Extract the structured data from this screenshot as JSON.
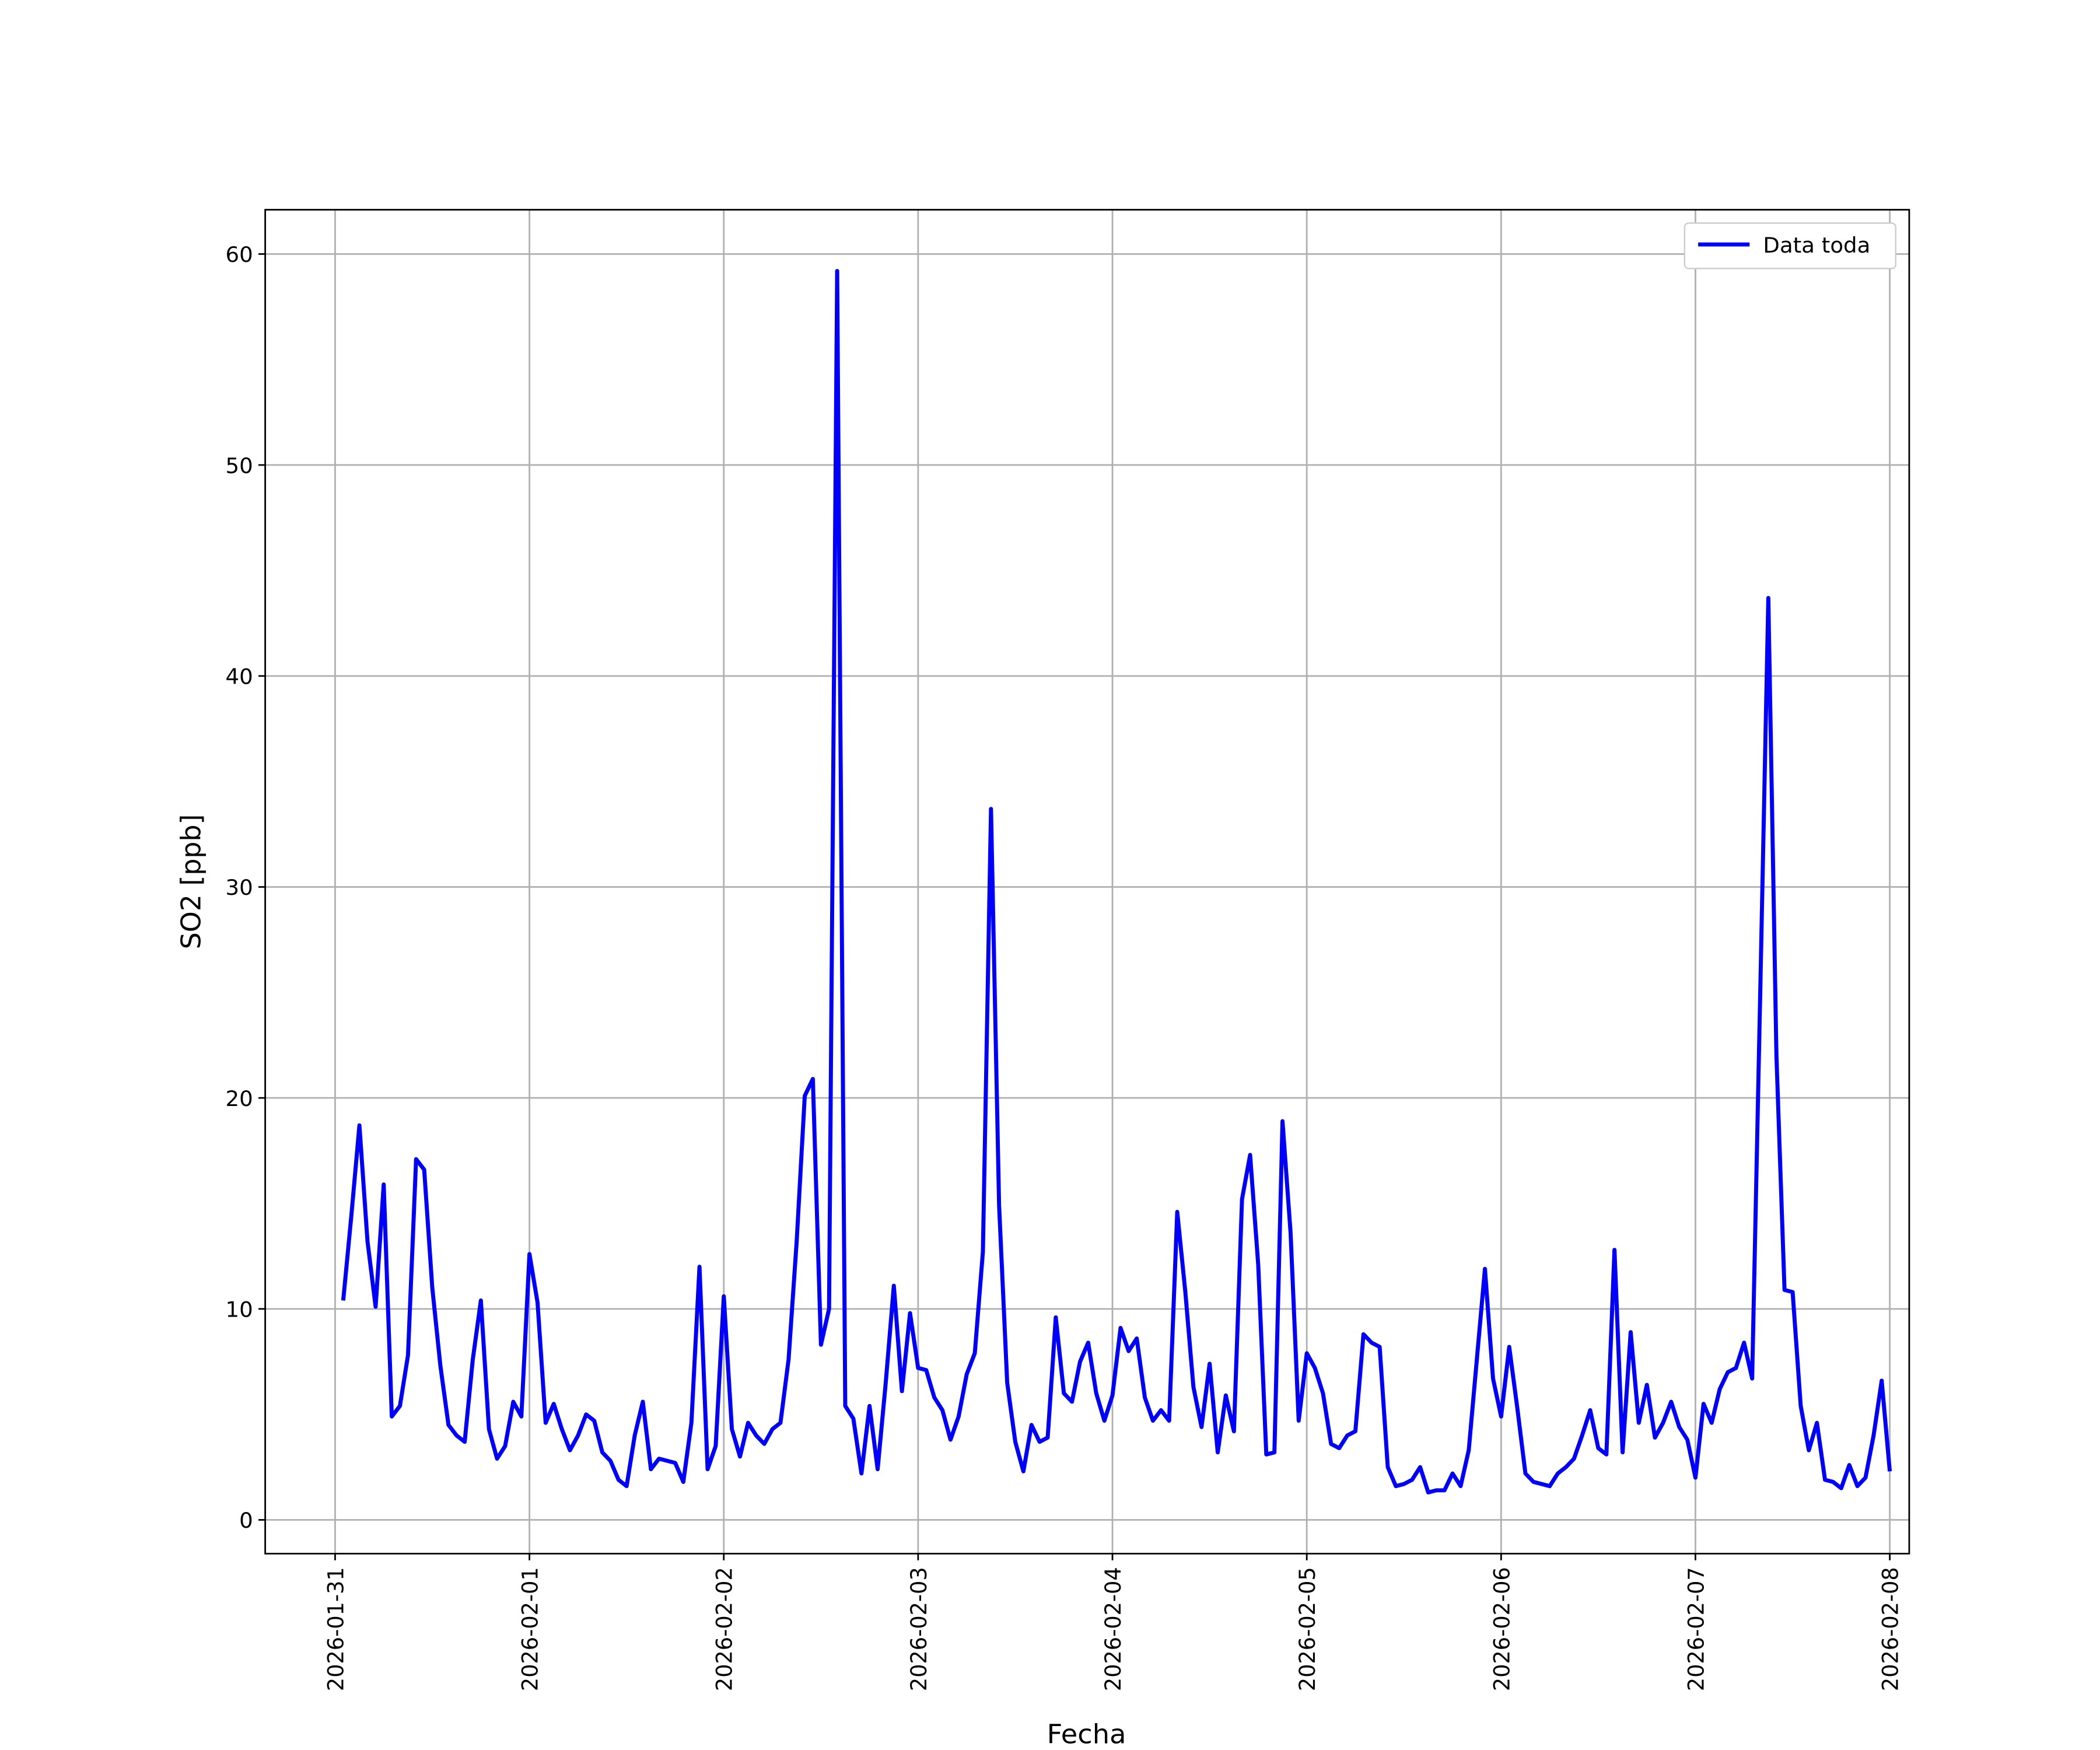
{
  "chart_data": {
    "type": "line",
    "xlabel": "Fecha",
    "ylabel": "SO2 [ppb]",
    "xlim": [
      "2026-01-30T15:22",
      "2026-02-08T02:24"
    ],
    "ylim": [
      -1.6,
      62.1
    ],
    "xticks": [
      "2026-01-31",
      "2026-02-01",
      "2026-02-02",
      "2026-02-03",
      "2026-02-04",
      "2026-02-05",
      "2026-02-06",
      "2026-02-07",
      "2026-02-08"
    ],
    "yticks": [
      0,
      10,
      20,
      30,
      40,
      50,
      60
    ],
    "grid": true,
    "legend": "upper right",
    "x": [
      "2026-01-31T01:00",
      "2026-01-31T02:00",
      "2026-01-31T03:00",
      "2026-01-31T04:00",
      "2026-01-31T05:00",
      "2026-01-31T06:00",
      "2026-01-31T07:00",
      "2026-01-31T08:00",
      "2026-01-31T09:00",
      "2026-01-31T10:00",
      "2026-01-31T11:00",
      "2026-01-31T12:00",
      "2026-01-31T13:00",
      "2026-01-31T14:00",
      "2026-01-31T15:00",
      "2026-01-31T16:00",
      "2026-01-31T17:00",
      "2026-01-31T18:00",
      "2026-01-31T19:00",
      "2026-01-31T20:00",
      "2026-01-31T21:00",
      "2026-01-31T22:00",
      "2026-01-31T23:00",
      "2026-02-01T00:00",
      "2026-02-01T01:00",
      "2026-02-01T02:00",
      "2026-02-01T03:00",
      "2026-02-01T04:00",
      "2026-02-01T05:00",
      "2026-02-01T06:00",
      "2026-02-01T07:00",
      "2026-02-01T08:00",
      "2026-02-01T09:00",
      "2026-02-01T10:00",
      "2026-02-01T11:00",
      "2026-02-01T12:00",
      "2026-02-01T13:00",
      "2026-02-01T14:00",
      "2026-02-01T15:00",
      "2026-02-01T16:00",
      "2026-02-01T17:00",
      "2026-02-01T18:00",
      "2026-02-01T19:00",
      "2026-02-01T20:00",
      "2026-02-01T21:00",
      "2026-02-01T22:00",
      "2026-02-01T23:00",
      "2026-02-02T00:00",
      "2026-02-02T01:00",
      "2026-02-02T02:00",
      "2026-02-02T03:00",
      "2026-02-02T04:00",
      "2026-02-02T05:00",
      "2026-02-02T06:00",
      "2026-02-02T07:00",
      "2026-02-02T08:00",
      "2026-02-02T09:00",
      "2026-02-02T10:00",
      "2026-02-02T11:00",
      "2026-02-02T12:00",
      "2026-02-02T13:00",
      "2026-02-02T14:00",
      "2026-02-02T15:00",
      "2026-02-02T16:00",
      "2026-02-02T17:00",
      "2026-02-02T18:00",
      "2026-02-02T19:00",
      "2026-02-02T20:00",
      "2026-02-02T21:00",
      "2026-02-02T22:00",
      "2026-02-02T23:00",
      "2026-02-03T00:00",
      "2026-02-03T01:00",
      "2026-02-03T02:00",
      "2026-02-03T03:00",
      "2026-02-03T04:00",
      "2026-02-03T05:00",
      "2026-02-03T06:00",
      "2026-02-03T07:00",
      "2026-02-03T08:00",
      "2026-02-03T09:00",
      "2026-02-03T10:00",
      "2026-02-03T11:00",
      "2026-02-03T12:00",
      "2026-02-03T13:00",
      "2026-02-03T14:00",
      "2026-02-03T15:00",
      "2026-02-03T16:00",
      "2026-02-03T17:00",
      "2026-02-03T18:00",
      "2026-02-03T19:00",
      "2026-02-03T20:00",
      "2026-02-03T21:00",
      "2026-02-03T22:00",
      "2026-02-03T23:00",
      "2026-02-04T00:00",
      "2026-02-04T01:00",
      "2026-02-04T02:00",
      "2026-02-04T03:00",
      "2026-02-04T04:00",
      "2026-02-04T05:00",
      "2026-02-04T06:00",
      "2026-02-04T07:00",
      "2026-02-04T08:00",
      "2026-02-04T09:00",
      "2026-02-04T10:00",
      "2026-02-04T11:00",
      "2026-02-04T12:00",
      "2026-02-04T13:00",
      "2026-02-04T14:00",
      "2026-02-04T15:00",
      "2026-02-04T16:00",
      "2026-02-04T17:00",
      "2026-02-04T18:00",
      "2026-02-04T19:00",
      "2026-02-04T20:00",
      "2026-02-04T21:00",
      "2026-02-04T22:00",
      "2026-02-04T23:00",
      "2026-02-05T00:00",
      "2026-02-05T01:00",
      "2026-02-05T02:00",
      "2026-02-05T03:00",
      "2026-02-05T04:00",
      "2026-02-05T05:00",
      "2026-02-05T06:00",
      "2026-02-05T07:00",
      "2026-02-05T08:00",
      "2026-02-05T09:00",
      "2026-02-05T10:00",
      "2026-02-05T11:00",
      "2026-02-05T12:00",
      "2026-02-05T13:00",
      "2026-02-05T14:00",
      "2026-02-05T15:00",
      "2026-02-05T16:00",
      "2026-02-05T17:00",
      "2026-02-05T18:00",
      "2026-02-05T19:00",
      "2026-02-05T20:00",
      "2026-02-05T21:00",
      "2026-02-05T22:00",
      "2026-02-05T23:00",
      "2026-02-06T00:00",
      "2026-02-06T01:00",
      "2026-02-06T02:00",
      "2026-02-06T03:00",
      "2026-02-06T04:00",
      "2026-02-06T05:00",
      "2026-02-06T06:00",
      "2026-02-06T07:00",
      "2026-02-06T08:00",
      "2026-02-06T09:00",
      "2026-02-06T10:00",
      "2026-02-06T11:00",
      "2026-02-06T12:00",
      "2026-02-06T13:00",
      "2026-02-06T14:00",
      "2026-02-06T15:00",
      "2026-02-06T16:00",
      "2026-02-06T17:00",
      "2026-02-06T18:00",
      "2026-02-06T19:00",
      "2026-02-06T20:00",
      "2026-02-06T21:00",
      "2026-02-06T22:00",
      "2026-02-06T23:00",
      "2026-02-07T00:00",
      "2026-02-07T01:00",
      "2026-02-07T02:00",
      "2026-02-07T03:00",
      "2026-02-07T04:00",
      "2026-02-07T05:00",
      "2026-02-07T06:00",
      "2026-02-07T07:00",
      "2026-02-07T08:00",
      "2026-02-07T09:00",
      "2026-02-07T10:00",
      "2026-02-07T11:00",
      "2026-02-07T12:00",
      "2026-02-07T13:00",
      "2026-02-07T14:00",
      "2026-02-07T15:00",
      "2026-02-07T16:00",
      "2026-02-07T17:00",
      "2026-02-07T18:00",
      "2026-02-07T19:00",
      "2026-02-07T20:00",
      "2026-02-07T21:00",
      "2026-02-07T22:00",
      "2026-02-07T23:00",
      "2026-02-08T00:00"
    ],
    "series": [
      {
        "name": "Data toda",
        "color": "#0000ff",
        "values": [
          10.4,
          14.4,
          18.7,
          13.2,
          10.1,
          15.9,
          4.9,
          5.4,
          7.8,
          17.1,
          16.6,
          11.0,
          7.3,
          4.5,
          4.0,
          3.7,
          7.6,
          10.4,
          4.3,
          2.9,
          3.5,
          5.6,
          4.9,
          12.6,
          10.3,
          4.6,
          5.5,
          4.3,
          3.3,
          4.0,
          5.0,
          4.7,
          3.2,
          2.8,
          1.9,
          1.6,
          4.0,
          5.6,
          2.4,
          2.9,
          2.8,
          2.7,
          1.8,
          4.6,
          12.0,
          2.4,
          3.5,
          10.6,
          4.3,
          3.0,
          4.6,
          4.0,
          3.6,
          4.3,
          4.6,
          7.6,
          13.2,
          20.1,
          20.9,
          8.3,
          10.0,
          59.2,
          5.4,
          4.8,
          2.2,
          5.4,
          2.4,
          6.5,
          11.1,
          6.1,
          9.8,
          7.2,
          7.1,
          5.8,
          5.2,
          3.8,
          4.9,
          6.9,
          7.9,
          12.7,
          33.7,
          14.9,
          6.5,
          3.7,
          2.3,
          4.5,
          3.7,
          3.9,
          9.6,
          6.0,
          5.6,
          7.5,
          8.4,
          6.0,
          4.7,
          5.9,
          9.1,
          8.0,
          8.6,
          5.8,
          4.7,
          5.2,
          4.7,
          14.6,
          10.8,
          6.3,
          4.4,
          7.4,
          3.2,
          5.9,
          4.2,
          15.2,
          17.3,
          12.1,
          3.1,
          3.2,
          18.9,
          13.6,
          4.7,
          7.9,
          7.2,
          6.0,
          3.6,
          3.4,
          4.0,
          4.2,
          8.8,
          8.4,
          8.2,
          2.5,
          1.6,
          1.7,
          1.9,
          2.5,
          1.3,
          1.4,
          1.4,
          2.2,
          1.6,
          3.3,
          7.6,
          11.9,
          6.7,
          4.9,
          8.2,
          5.3,
          2.2,
          1.8,
          1.7,
          1.6,
          2.2,
          2.5,
          2.9,
          4.0,
          5.2,
          3.4,
          3.1,
          12.8,
          3.2,
          8.9,
          4.6,
          6.4,
          3.9,
          4.6,
          5.6,
          4.4,
          3.8,
          2.0,
          5.5,
          4.6,
          6.2,
          7.0,
          7.2,
          8.4,
          6.7,
          25.0,
          43.7,
          22.0,
          10.9,
          10.8,
          5.4,
          3.3,
          4.6,
          1.9,
          1.8,
          1.5,
          2.6,
          1.6,
          2.0,
          4.0,
          6.6,
          2.3
        ]
      }
    ]
  }
}
